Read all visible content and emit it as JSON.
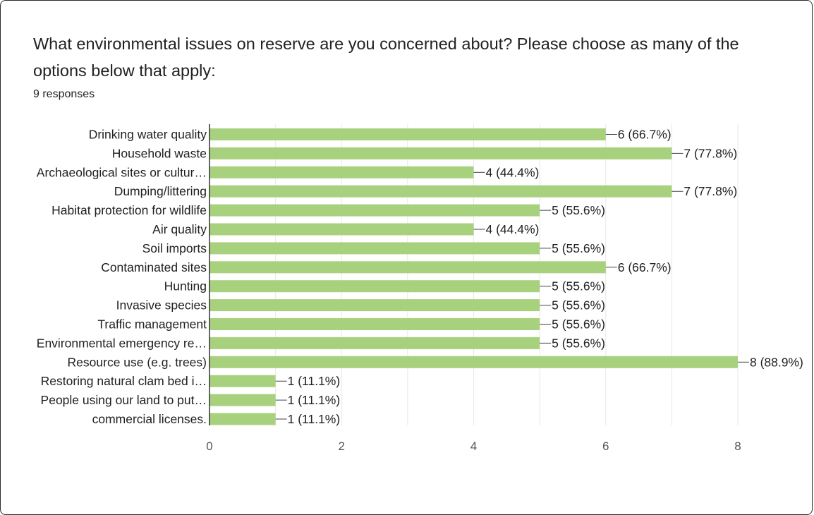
{
  "question": {
    "title": "What environmental issues on reserve are you concerned about? Please choose as many of the options below that apply:",
    "response_count": "9 responses"
  },
  "colors": {
    "bar": "#a8d17e",
    "grid": "#e8e8e8",
    "axis": "#333333",
    "text": "#202124",
    "tick": "#555555"
  },
  "chart_data": {
    "type": "bar",
    "orientation": "horizontal",
    "xlim": [
      0,
      8
    ],
    "xticks": [
      0,
      2,
      4,
      6,
      8
    ],
    "grid": true,
    "categories": [
      "Drinking water quality",
      "Household waste",
      "Archaeological sites or cultur…",
      "Dumping/littering",
      "Habitat protection for wildlife",
      "Air quality",
      "Soil imports",
      "Contaminated sites",
      "Hunting",
      "Invasive species",
      "Traffic management",
      "Environmental emergency re…",
      "Resource use (e.g. trees)",
      "Restoring natural clam bed i…",
      "People using our land to put…",
      "commercial licenses."
    ],
    "values": [
      6,
      7,
      4,
      7,
      5,
      4,
      5,
      6,
      5,
      5,
      5,
      5,
      8,
      1,
      1,
      1
    ],
    "data_labels": [
      "6 (66.7%)",
      "7 (77.8%)",
      "4 (44.4%)",
      "7 (77.8%)",
      "5 (55.6%)",
      "4 (44.4%)",
      "5 (55.6%)",
      "6 (66.7%)",
      "5 (55.6%)",
      "5 (55.6%)",
      "5 (55.6%)",
      "5 (55.6%)",
      "8 (88.9%)",
      "1 (11.1%)",
      "1 (11.1%)",
      "1 (11.1%)"
    ]
  }
}
